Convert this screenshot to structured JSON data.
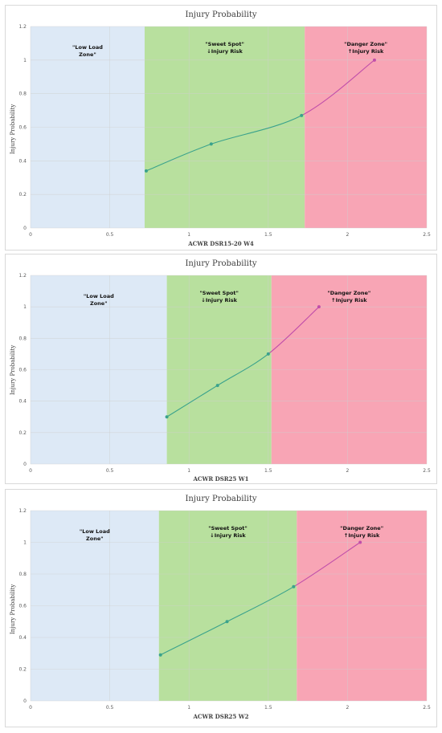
{
  "colors": {
    "low_zone": "#dde9f6",
    "sweet_zone": "#b8e09e",
    "danger_zone": "#f8a5b5",
    "line_low": "#3aa28c",
    "line_high": "#c14faa",
    "grid": "#cfcfcf"
  },
  "zone_labels": {
    "low_line1": "\"Low Load",
    "low_line2": "Zone\"",
    "sweet_line1": "\"Sweet Spot\"",
    "sweet_line2": "↓Injury Risk",
    "danger_line1": "\"Danger Zone\"",
    "danger_line2": "↑Injury Risk"
  },
  "chart_data": [
    {
      "type": "line",
      "title": "Injury Probability",
      "xlabel": "ACWR DSR15-20 W4",
      "ylabel": "Injury Probability",
      "xlim": [
        0,
        2.5
      ],
      "ylim": [
        0,
        1.2
      ],
      "xticks": [
        "0",
        "0.5",
        "1",
        "1.5",
        "2",
        "2.5"
      ],
      "yticks": [
        "0",
        "0.2",
        "0.4",
        "0.6",
        "0.8",
        "1",
        "1.2"
      ],
      "grid": true,
      "zones": [
        {
          "name": "low",
          "from": 0,
          "to": 0.72
        },
        {
          "name": "sweet",
          "from": 0.72,
          "to": 1.73
        },
        {
          "name": "danger",
          "from": 1.73,
          "to": 2.5
        }
      ],
      "series": [
        {
          "x": [
            0.73,
            1.14,
            1.71,
            2.17
          ],
          "y": [
            0.34,
            0.5,
            0.67,
            1.0
          ]
        }
      ]
    },
    {
      "type": "line",
      "title": "Injury Probability",
      "xlabel": "ACWR DSR25 W1",
      "ylabel": "Injury Probability",
      "xlim": [
        0,
        2.5
      ],
      "ylim": [
        0,
        1.2
      ],
      "xticks": [
        "0",
        "0.5",
        "1",
        "1.5",
        "2",
        "2.5"
      ],
      "yticks": [
        "0",
        "0.2",
        "0.4",
        "0.6",
        "0.8",
        "1",
        "1.2"
      ],
      "grid": true,
      "zones": [
        {
          "name": "low",
          "from": 0,
          "to": 0.86
        },
        {
          "name": "sweet",
          "from": 0.86,
          "to": 1.52
        },
        {
          "name": "danger",
          "from": 1.52,
          "to": 2.5
        }
      ],
      "series": [
        {
          "x": [
            0.86,
            1.18,
            1.5,
            1.82
          ],
          "y": [
            0.3,
            0.5,
            0.7,
            1.0
          ]
        }
      ]
    },
    {
      "type": "line",
      "title": "Injury Probability",
      "xlabel": "ACWR DSR25 W2",
      "ylabel": "Injury Probability",
      "xlim": [
        0,
        2.5
      ],
      "ylim": [
        0,
        1.2
      ],
      "xticks": [
        "0",
        "0.5",
        "1",
        "1.5",
        "2",
        "2.5"
      ],
      "yticks": [
        "0",
        "0.2",
        "0.4",
        "0.6",
        "0.8",
        "1",
        "1.2"
      ],
      "grid": true,
      "zones": [
        {
          "name": "low",
          "from": 0,
          "to": 0.81
        },
        {
          "name": "sweet",
          "from": 0.81,
          "to": 1.68
        },
        {
          "name": "danger",
          "from": 1.68,
          "to": 2.5
        }
      ],
      "series": [
        {
          "x": [
            0.82,
            1.24,
            1.66,
            2.08
          ],
          "y": [
            0.29,
            0.5,
            0.72,
            1.0
          ]
        }
      ]
    }
  ]
}
